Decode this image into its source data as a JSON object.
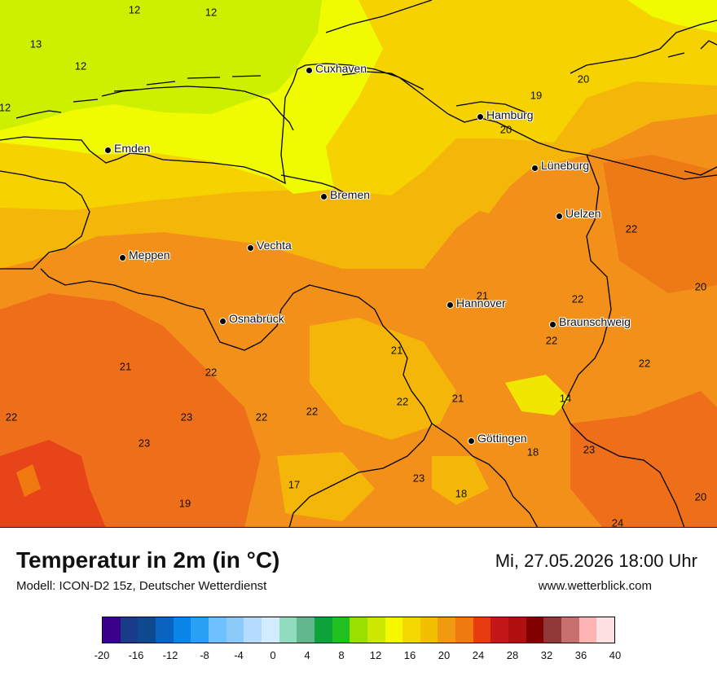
{
  "map": {
    "cities": [
      {
        "name": "Cuxhaven",
        "key": "cuxhaven"
      },
      {
        "name": "Hamburg",
        "key": "hamburg"
      },
      {
        "name": "Emden",
        "key": "emden"
      },
      {
        "name": "Lüneburg",
        "key": "lueneburg"
      },
      {
        "name": "Bremen",
        "key": "bremen"
      },
      {
        "name": "Uelzen",
        "key": "uelzen"
      },
      {
        "name": "Vechta",
        "key": "vechta"
      },
      {
        "name": "Meppen",
        "key": "meppen"
      },
      {
        "name": "Hannover",
        "key": "hannover"
      },
      {
        "name": "Osnabrück",
        "key": "osnabrueck"
      },
      {
        "name": "Braunschweig",
        "key": "braunschweig"
      },
      {
        "name": "Göttingen",
        "key": "goettingen"
      }
    ],
    "temperature_labels": [
      "12",
      "12",
      "13",
      "12",
      "12",
      "19",
      "20",
      "20",
      "22",
      "21",
      "22",
      "20",
      "22",
      "21",
      "22",
      "21",
      "22",
      "21",
      "14",
      "22",
      "22",
      "23",
      "22",
      "22",
      "23",
      "18",
      "23",
      "23",
      "17",
      "18",
      "19",
      "24",
      "20"
    ]
  },
  "footer": {
    "title": "Temperatur in 2m (in °C)",
    "model": "Modell: ICON-D2 15z, Deutscher Wetterdienst",
    "datetime": "Mi, 27.05.2026 18:00 Uhr",
    "website": "www.wetterblick.com"
  },
  "legend": {
    "ticks": [
      "-20",
      "-16",
      "-12",
      "-8",
      "-4",
      "0",
      "4",
      "8",
      "12",
      "16",
      "20",
      "24",
      "28",
      "32",
      "36",
      "40"
    ],
    "colors": [
      "#3a0089",
      "#1a3a8a",
      "#104a8e",
      "#0b63c0",
      "#0a86e8",
      "#2aa0f4",
      "#6ec0ff",
      "#8ccaf9",
      "#b4dcff",
      "#d4ecff",
      "#8fdcbf",
      "#62b78f",
      "#0ea33a",
      "#20c020",
      "#99e000",
      "#cde800",
      "#f6f800",
      "#f3d800",
      "#f2c000",
      "#f09a10",
      "#f07a10",
      "#e83c10",
      "#c41818",
      "#b01010",
      "#800000",
      "#903838",
      "#c87070",
      "#ffb4b4",
      "#ffe0e0"
    ],
    "accent_colors": {
      "cool": "#ccf000",
      "lightYellow": "#f0fa00",
      "yellow": "#f5d200",
      "amber": "#f5b60a",
      "orange": "#f2901a",
      "darkOrange": "#ee6e1a",
      "redOrange": "#e8441a"
    }
  }
}
